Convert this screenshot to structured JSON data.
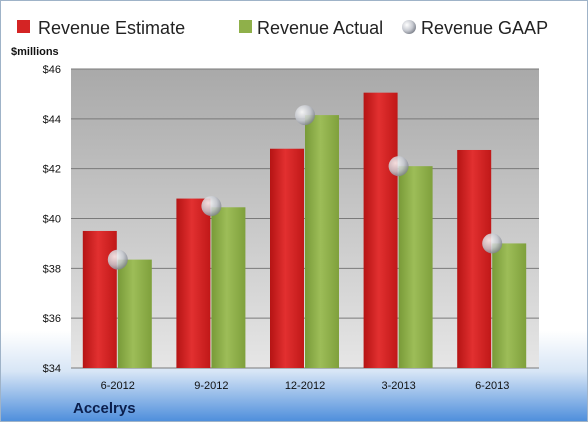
{
  "chart_data": {
    "type": "bar",
    "categories": [
      "6-2012",
      "9-2012",
      "12-2012",
      "3-2013",
      "6-2013"
    ],
    "series": [
      {
        "name": "Revenue Estimate",
        "values": [
          39.5,
          40.8,
          42.8,
          45.05,
          42.75
        ],
        "color": "#d42424",
        "kind": "bar"
      },
      {
        "name": "Revenue Actual",
        "values": [
          38.35,
          40.45,
          44.15,
          42.1,
          39.0
        ],
        "color": "#8fb04a",
        "kind": "bar"
      },
      {
        "name": "Revenue GAAP",
        "values": [
          38.35,
          40.5,
          44.15,
          42.1,
          39.0
        ],
        "color": "#c8ccd4",
        "kind": "marker"
      }
    ],
    "ylabel": "$millions",
    "ylim": [
      34,
      46
    ],
    "yticks": [
      "$34",
      "$36",
      "$38",
      "$40",
      "$42",
      "$44",
      "$46"
    ],
    "company": "Accelrys",
    "grid": true,
    "legend_position": "top"
  }
}
